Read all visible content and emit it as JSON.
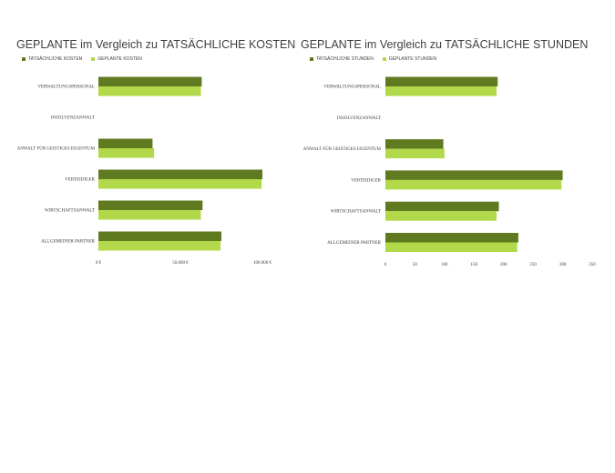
{
  "colors": {
    "actual": "#5f7a1f",
    "planned": "#b2d94a",
    "text": "#404040"
  },
  "chart_data": [
    {
      "type": "bar",
      "orientation": "horizontal",
      "title": "GEPLANTE im Vergleich zu TATSÄCHLICHE KOSTEN",
      "categories": [
        "VERWALTUNGSPERSONAL",
        "INSOLVENZANWALT",
        "ANWALT FÜR GEISTIGES EIGENTUM",
        "VERTEIDIGER",
        "WIRTSCHAFTSANWALT",
        "ALLGEMEINER PARTNER"
      ],
      "series": [
        {
          "name": "TATSÄCHLICHE KOSTEN",
          "values": [
            63000,
            0,
            33000,
            100000,
            63500,
            75000
          ]
        },
        {
          "name": "GEPLANTE KOSTEN",
          "values": [
            62500,
            0,
            34000,
            99500,
            62500,
            74500
          ]
        }
      ],
      "xlim": [
        0,
        100000
      ],
      "xticks": [
        "0 €",
        "50.000 €",
        "100.000 €"
      ],
      "legend_position": "top-left",
      "grid": false
    },
    {
      "type": "bar",
      "orientation": "horizontal",
      "title": "GEPLANTE im Vergleich zu TATSÄCHLICHE STUNDEN",
      "categories": [
        "VERWALTUNGSPERSONAL",
        "INSOLVENZANWALT",
        "ANWALT FÜR GEISTIGES EIGENTUM",
        "VERTEIDIGER",
        "WIRTSCHAFTSANWALT",
        "ALLGEMEINER PARTNER"
      ],
      "series": [
        {
          "name": "TATSÄCHLICHE STUNDEN",
          "values": [
            190,
            0,
            98,
            300,
            192,
            225
          ]
        },
        {
          "name": "GEPLANTE STUNDEN",
          "values": [
            188,
            0,
            100,
            298,
            188,
            223
          ]
        }
      ],
      "xlim": [
        0,
        350
      ],
      "xticks": [
        "0",
        "50",
        "100",
        "150",
        "200",
        "250",
        "300",
        "350"
      ],
      "legend_position": "top-left",
      "grid": false
    }
  ]
}
